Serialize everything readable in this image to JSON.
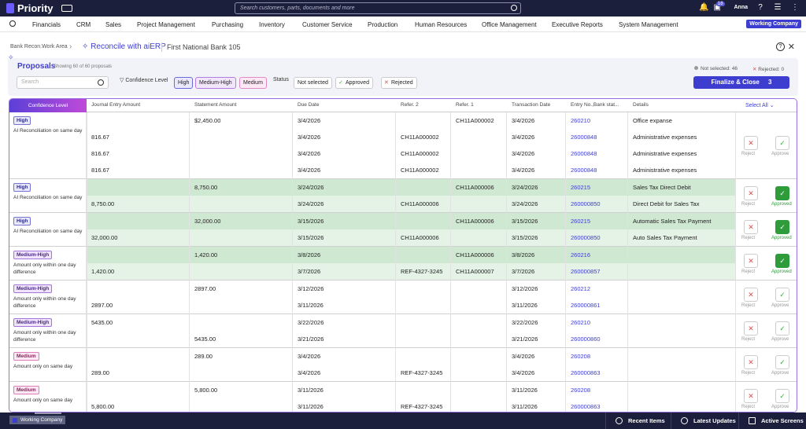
{
  "app": {
    "name": "Priority",
    "search_placeholder": "Search customers, parts, documents and more",
    "user": "Anna",
    "notif_count": "18"
  },
  "menu": [
    "Financials",
    "CRM",
    "Sales",
    "Project Management",
    "Purchasing",
    "Inventory",
    "Customer Service",
    "Production",
    "Human Resources",
    "Office Management",
    "Executive Reports",
    "System Management"
  ],
  "company": "Working Company",
  "breadcrumb": {
    "area": "Bank Recon.Work Area",
    "title": "Reconcile with aiERP",
    "bank": "First National Bank 105"
  },
  "proposals": {
    "title": "Proposals",
    "showing": "Showing 60 of 60 proposals",
    "search_placeholder": "Search"
  },
  "filters": {
    "confidence_label": "Confidence Level",
    "conf_chips": [
      "High",
      "Medium-High",
      "Medium"
    ],
    "status_label": "Status",
    "status_chips": [
      "Not selected",
      "Approved",
      "Rejected"
    ]
  },
  "stats": {
    "not_selected": "Not selected: 46",
    "rejected": "Rejected: 0"
  },
  "finalize": {
    "label": "Finalize & Close",
    "count": "3"
  },
  "table": {
    "headers": [
      "Confidence Level",
      "Journal Entry Amount",
      "Statement Amount",
      "Due Date",
      "Refer. 2",
      "Refer. 1",
      "Transaction Date",
      "Entry No.,Bank stat...",
      "Details"
    ],
    "select_all": "Select All",
    "reject": "Reject",
    "approve": "Approve",
    "approved": "Approved",
    "groups": [
      {
        "level": "High",
        "desc": "AI Reconciliation on same day",
        "status": "none",
        "rows": [
          {
            "je": "",
            "st": "$2,450.00",
            "due": "3/4/2026",
            "r2": "",
            "r1": "CH11A000002",
            "td": "3/4/2026",
            "entry": "260210",
            "det": "Office expanse"
          },
          {
            "je": "816.67",
            "st": "",
            "due": "3/4/2026",
            "r2": "CH11A000002",
            "r1": "",
            "td": "3/4/2026",
            "entry": "26000848",
            "det": "Administrative expenses"
          },
          {
            "je": "816.67",
            "st": "",
            "due": "3/4/2026",
            "r2": "CH11A000002",
            "r1": "",
            "td": "3/4/2026",
            "entry": "26000848",
            "det": "Administrative expenses"
          },
          {
            "je": "816.67",
            "st": "",
            "due": "3/4/2026",
            "r2": "CH11A000002",
            "r1": "",
            "td": "3/4/2026",
            "entry": "26000848",
            "det": "Administrative expenses"
          }
        ]
      },
      {
        "level": "High",
        "desc": "AI Reconciliation on same day",
        "status": "approved",
        "rows": [
          {
            "je": "",
            "st": "8,750.00",
            "due": "3/24/2026",
            "r2": "",
            "r1": "CH11A000006",
            "td": "3/24/2026",
            "entry": "260215",
            "det": "Sales Tax Direct Debit"
          },
          {
            "je": "8,750.00",
            "st": "",
            "due": "3/24/2026",
            "r2": "CH11A000006",
            "r1": "",
            "td": "3/24/2026",
            "entry": "260000850",
            "det": "Direct Debit for Sales Tax"
          }
        ]
      },
      {
        "level": "High",
        "desc": "AI Reconciliation on same day",
        "status": "approved",
        "rows": [
          {
            "je": "",
            "st": "32,000.00",
            "due": "3/15/2026",
            "r2": "",
            "r1": "CH11A000006",
            "td": "3/15/2026",
            "entry": "260215",
            "det": "Automatic Sales Tax Payment"
          },
          {
            "je": "32,000.00",
            "st": "",
            "due": "3/15/2026",
            "r2": "CH11A000006",
            "r1": "",
            "td": "3/15/2026",
            "entry": "260000850",
            "det": "Auto Sales Tax Payment"
          }
        ]
      },
      {
        "level": "Medium-High",
        "desc": "Amount only within one day difference",
        "status": "approved",
        "rows": [
          {
            "je": "",
            "st": "1,420.00",
            "due": "3/8/2026",
            "r2": "",
            "r1": "CH11A000006",
            "td": "3/8/2026",
            "entry": "260216",
            "det": ""
          },
          {
            "je": "1,420.00",
            "st": "",
            "due": "3/7/2026",
            "r2": "REF-4327-3245",
            "r1": "CH11A000007",
            "td": "3/7/2026",
            "entry": "260000857",
            "det": ""
          }
        ]
      },
      {
        "level": "Medium-High",
        "desc": "Amount only within one day difference",
        "status": "none",
        "rows": [
          {
            "je": "",
            "st": "2897.00",
            "due": "3/12/2026",
            "r2": "",
            "r1": "",
            "td": "3/12/2026",
            "entry": "260212",
            "det": ""
          },
          {
            "je": "2897.00",
            "st": "",
            "due": "3/11/2026",
            "r2": "",
            "r1": "",
            "td": "3/11/2026",
            "entry": "260000861",
            "det": ""
          }
        ]
      },
      {
        "level": "Medium-High",
        "desc": "Amount only within one day difference",
        "status": "none",
        "rows": [
          {
            "je": "5435.00",
            "st": "",
            "due": "3/22/2026",
            "r2": "",
            "r1": "",
            "td": "3/22/2026",
            "entry": "260210",
            "det": ""
          },
          {
            "je": "",
            "st": "5435.00",
            "due": "3/21/2026",
            "r2": "",
            "r1": "",
            "td": "3/21/2026",
            "entry": "260000860",
            "det": ""
          }
        ]
      },
      {
        "level": "Medium",
        "desc": "Amount only on same day",
        "status": "none",
        "rows": [
          {
            "je": "",
            "st": "289.00",
            "due": "3/4/2026",
            "r2": "",
            "r1": "",
            "td": "3/4/2026",
            "entry": "260208",
            "det": ""
          },
          {
            "je": "289.00",
            "st": "",
            "due": "3/4/2026",
            "r2": "REF-4327-3245",
            "r1": "",
            "td": "3/4/2026",
            "entry": "260000863",
            "det": ""
          }
        ]
      },
      {
        "level": "Medium",
        "desc": "Amount only on same day",
        "status": "none",
        "rows": [
          {
            "je": "",
            "st": "5,800.00",
            "due": "3/11/2026",
            "r2": "",
            "r1": "",
            "td": "3/11/2026",
            "entry": "260208",
            "det": ""
          },
          {
            "je": "5,800.00",
            "st": "",
            "due": "3/11/2026",
            "r2": "REF-4327-3245",
            "r1": "",
            "td": "3/11/2026",
            "entry": "260000863",
            "det": ""
          }
        ]
      }
    ]
  },
  "bottom": {
    "company": "Working Company",
    "tabs": [
      "Recent Items",
      "Latest Updates",
      "Active Screens"
    ]
  }
}
